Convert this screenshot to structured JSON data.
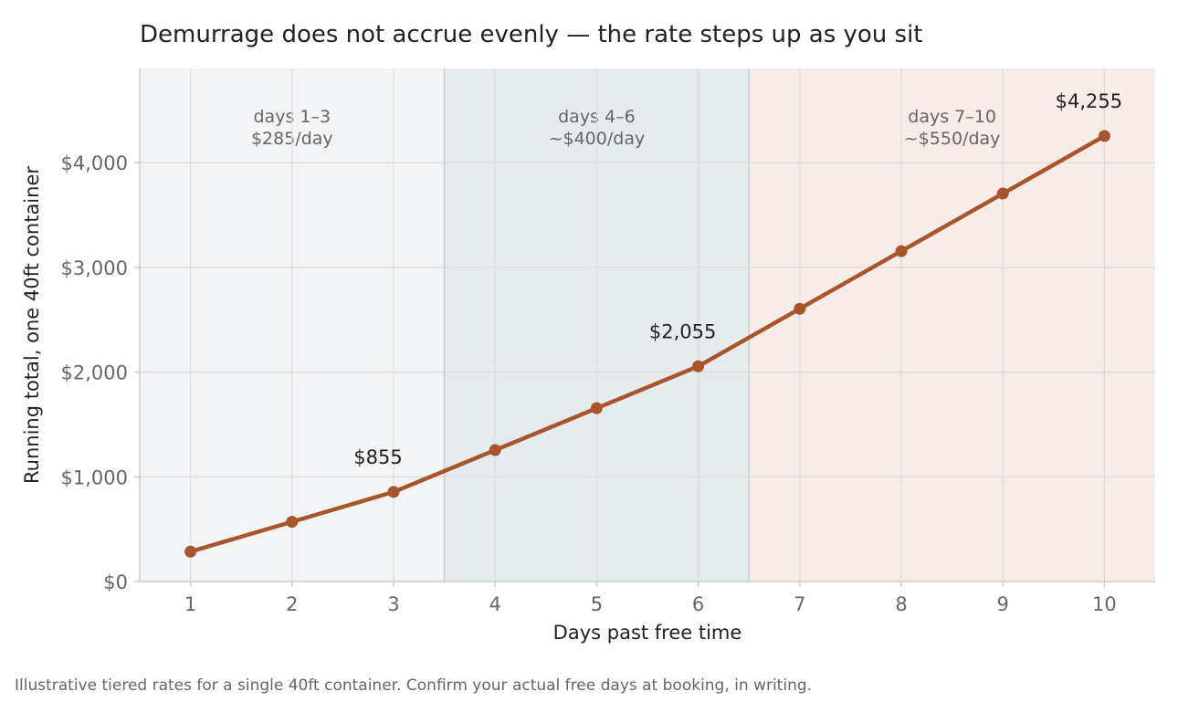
{
  "chart_data": {
    "type": "line",
    "title": "Demurrage does not accrue evenly — the rate steps up as you sit",
    "xlabel": "Days past free time",
    "ylabel": "Running total, one 40ft container",
    "x": [
      1,
      2,
      3,
      4,
      5,
      6,
      7,
      8,
      9,
      10
    ],
    "series": [
      {
        "values": [
          285,
          570,
          855,
          1255,
          1655,
          2055,
          2605,
          3155,
          3705,
          4255
        ]
      }
    ],
    "xlim": [
      0.5,
      10.5
    ],
    "ylim": [
      0,
      4900
    ],
    "x_ticks": [
      "1",
      "2",
      "3",
      "4",
      "5",
      "6",
      "7",
      "8",
      "9",
      "10"
    ],
    "y_ticks": [
      {
        "value": 0,
        "label": "$0"
      },
      {
        "value": 1000,
        "label": "$1,000"
      },
      {
        "value": 2000,
        "label": "$2,000"
      },
      {
        "value": 3000,
        "label": "$3,000"
      },
      {
        "value": 4000,
        "label": "$4,000"
      }
    ],
    "grid": true,
    "bands": [
      {
        "x_start": 0.5,
        "x_end": 3.5,
        "line1": "days 1–3",
        "line2": "$285/day",
        "color": "#f3f4f6"
      },
      {
        "x_start": 3.5,
        "x_end": 6.5,
        "line1": "days 4–6",
        "line2": "~$400/day",
        "color": "#e6ecee"
      },
      {
        "x_start": 6.5,
        "x_end": 10.5,
        "line1": "days 7–10",
        "line2": "~$550/day",
        "color": "#f6ece8"
      }
    ],
    "annotations": [
      {
        "x": 3,
        "y": 855,
        "text": "$855"
      },
      {
        "x": 6,
        "y": 2055,
        "text": "$2,055"
      },
      {
        "x": 10,
        "y": 4255,
        "text": "$4,255"
      }
    ],
    "colors": {
      "line": "#a8552b",
      "grid": "#dcdcdc",
      "axis": "#cccccc",
      "band_divider": "#c8cdd0"
    }
  },
  "footnote": "Illustrative tiered rates for a single 40ft container. Confirm your actual free days at booking, in writing."
}
